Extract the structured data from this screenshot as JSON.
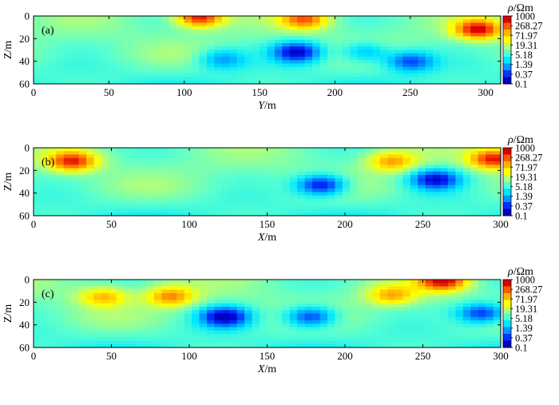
{
  "chart_data": [
    {
      "type": "heatmap",
      "panel_label": "(a)",
      "xlabel_var": "Y",
      "xlabel_unit": "/m",
      "ylabel": "Z/m",
      "xlim": [
        0,
        310
      ],
      "ylim": [
        60,
        0
      ],
      "xticks": [
        "0",
        "50",
        "100",
        "150",
        "200",
        "250",
        "300"
      ],
      "yticks": [
        "0",
        "20",
        "40",
        "60"
      ],
      "colorbar": {
        "title_var": "ρ",
        "title_unit": "/Ωm",
        "scale": "log",
        "labels": [
          "1000",
          "268.27",
          "71.97",
          "19.31",
          "5.18",
          "1.39",
          "0.37",
          "0.1"
        ]
      },
      "anomalies": [
        {
          "x": 175,
          "z": 32,
          "rho": 0.12
        },
        {
          "x": 250,
          "z": 40,
          "rho": 0.35
        },
        {
          "x": 125,
          "z": 38,
          "rho": 0.9
        },
        {
          "x": 220,
          "z": 32,
          "rho": 0.9
        },
        {
          "x": 295,
          "z": 12,
          "rho": 900
        },
        {
          "x": 110,
          "z": 1,
          "rho": 1000
        },
        {
          "x": 180,
          "z": 3,
          "rho": 300
        }
      ]
    },
    {
      "type": "heatmap",
      "panel_label": "(b)",
      "xlabel_var": "X",
      "xlabel_unit": "/m",
      "ylabel": "Z/m",
      "xlim": [
        0,
        300
      ],
      "ylim": [
        60,
        0
      ],
      "xticks": [
        "0",
        "50",
        "100",
        "150",
        "200",
        "250",
        "300"
      ],
      "yticks": [
        "0",
        "20",
        "40",
        "60"
      ],
      "colorbar": {
        "title_var": "ρ",
        "title_unit": "/Ωm",
        "scale": "log",
        "labels": [
          "1000",
          "268.27",
          "71.97",
          "19.31",
          "5.18",
          "1.39",
          "0.37",
          "0.1"
        ]
      },
      "anomalies": [
        {
          "x": 25,
          "z": 12,
          "rho": 600
        },
        {
          "x": 185,
          "z": 33,
          "rho": 0.12
        },
        {
          "x": 258,
          "z": 28,
          "rho": 0.15
        },
        {
          "x": 230,
          "z": 12,
          "rho": 150
        },
        {
          "x": 296,
          "z": 10,
          "rho": 800
        }
      ]
    },
    {
      "type": "heatmap",
      "panel_label": "(c)",
      "xlabel_var": "X",
      "xlabel_unit": "/m",
      "ylabel": "Z/m",
      "xlim": [
        0,
        300
      ],
      "ylim": [
        60,
        0
      ],
      "xticks": [
        "0",
        "50",
        "100",
        "150",
        "200",
        "250",
        "300"
      ],
      "yticks": [
        "0",
        "20",
        "40",
        "60"
      ],
      "colorbar": {
        "title_var": "ρ",
        "title_unit": "/Ωm",
        "scale": "log",
        "labels": [
          "1000",
          "268.27",
          "71.97",
          "19.31",
          "5.18",
          "1.39",
          "0.37",
          "0.1"
        ]
      },
      "anomalies": [
        {
          "x": 123,
          "z": 33,
          "rho": 0.1
        },
        {
          "x": 178,
          "z": 33,
          "rho": 0.2
        },
        {
          "x": 288,
          "z": 30,
          "rho": 0.2
        },
        {
          "x": 88,
          "z": 15,
          "rho": 200
        },
        {
          "x": 45,
          "z": 15,
          "rho": 120
        },
        {
          "x": 230,
          "z": 14,
          "rho": 120
        },
        {
          "x": 263,
          "z": 1,
          "rho": 1000
        }
      ]
    }
  ],
  "colors": {
    "colormap": [
      "#0000c8",
      "#0032ff",
      "#0096ff",
      "#00e6ff",
      "#55ffd2",
      "#b4ff78",
      "#ffff00",
      "#ffb400",
      "#ff5a00",
      "#dc0000"
    ],
    "axis": "#000000"
  }
}
